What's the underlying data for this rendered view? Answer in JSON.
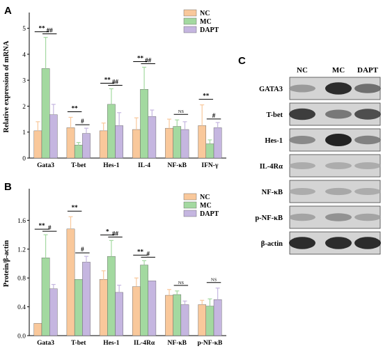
{
  "colors": {
    "NC": "#f9c89b",
    "MC": "#a3d9a0",
    "DAPT": "#c5b6e0"
  },
  "chart_data": [
    {
      "panel": "A",
      "type": "bar",
      "ylabel": "Relative expression of mRNA",
      "ylim": [
        0,
        5.5
      ],
      "yticks": [
        0,
        1,
        2,
        3,
        4,
        5
      ],
      "legend_position": "top-right",
      "categories": [
        "Gata3",
        "T-bet",
        "Hes-1",
        "IL-4",
        "NF-κB",
        "IFN-γ"
      ],
      "series": [
        {
          "name": "NC",
          "values": [
            1.05,
            1.17,
            1.05,
            1.1,
            1.15,
            1.25
          ],
          "errors": [
            0.35,
            0.4,
            0.3,
            0.45,
            0.35,
            0.8
          ]
        },
        {
          "name": "MC",
          "values": [
            3.45,
            0.5,
            2.07,
            2.65,
            1.22,
            0.55
          ],
          "errors": [
            1.2,
            0.1,
            0.6,
            0.85,
            0.25,
            0.15
          ]
        },
        {
          "name": "DAPT",
          "values": [
            1.67,
            0.95,
            1.25,
            1.6,
            1.1,
            1.17
          ],
          "errors": [
            0.4,
            0.2,
            0.5,
            0.25,
            0.3,
            0.2
          ]
        }
      ],
      "significance": [
        {
          "category": "Gata3",
          "nc_mc": "**",
          "mc_dapt": "##"
        },
        {
          "category": "T-bet",
          "nc_mc": "**",
          "mc_dapt": "#"
        },
        {
          "category": "Hes-1",
          "nc_mc": "**",
          "mc_dapt": "##"
        },
        {
          "category": "IL-4",
          "nc_mc": "**",
          "mc_dapt": "##"
        },
        {
          "category": "NF-κB",
          "nc_mc": "",
          "mc_dapt": "NS"
        },
        {
          "category": "IFN-γ",
          "nc_mc": "**",
          "mc_dapt": "#"
        }
      ]
    },
    {
      "panel": "B",
      "type": "bar",
      "ylabel": "Protein/β-actin",
      "ylim": [
        0,
        2.0
      ],
      "yticks": [
        0.0,
        0.4,
        0.8,
        1.2,
        1.6
      ],
      "legend_position": "top-right",
      "categories": [
        "Gata3",
        "T-bet",
        "Hes-1",
        "IL-4Rα",
        "NF-κB",
        "p-NF-κB"
      ],
      "series": [
        {
          "name": "NC",
          "values": [
            0.17,
            1.48,
            0.78,
            0.68,
            0.56,
            0.43
          ],
          "errors": [
            0.0,
            0.17,
            0.12,
            0.12,
            0.08,
            0.06
          ]
        },
        {
          "name": "MC",
          "values": [
            1.08,
            0.78,
            1.1,
            0.98,
            0.57,
            0.41
          ],
          "errors": [
            0.32,
            0.0,
            0.22,
            0.06,
            0.05,
            0.1
          ]
        },
        {
          "name": "DAPT",
          "values": [
            0.65,
            1.02,
            0.6,
            0.76,
            0.43,
            0.5
          ],
          "errors": [
            0.06,
            0.08,
            0.1,
            0.0,
            0.05,
            0.16
          ]
        }
      ],
      "significance": [
        {
          "category": "Gata3",
          "nc_mc": "**",
          "mc_dapt": "#"
        },
        {
          "category": "T-bet",
          "nc_mc": "**",
          "mc_dapt": "#"
        },
        {
          "category": "Hes-1",
          "nc_mc": "*",
          "mc_dapt": "##"
        },
        {
          "category": "IL-4Rα",
          "nc_mc": "**",
          "mc_dapt": "#"
        },
        {
          "category": "NF-κB",
          "nc_mc": "",
          "mc_dapt": "NS"
        },
        {
          "category": "p-NF-κB",
          "nc_mc": "",
          "mc_dapt": "NS"
        }
      ]
    }
  ],
  "western_blot": {
    "panel": "C",
    "columns": [
      "NC",
      "MC",
      "DAPT"
    ],
    "rows": [
      {
        "label": "GATA3",
        "intensity": [
          0.3,
          0.95,
          0.55
        ]
      },
      {
        "label": "T-bet",
        "intensity": [
          0.85,
          0.5,
          0.75
        ]
      },
      {
        "label": "Hes-1",
        "intensity": [
          0.4,
          1.0,
          0.45
        ]
      },
      {
        "label": "IL-4Rα",
        "intensity": [
          0.2,
          0.2,
          0.2
        ]
      },
      {
        "label": "NF-κB",
        "intensity": [
          0.2,
          0.22,
          0.2
        ]
      },
      {
        "label": "p-NF-κB",
        "intensity": [
          0.25,
          0.35,
          0.25
        ]
      },
      {
        "label": "β-actin",
        "intensity": [
          0.95,
          0.95,
          0.95
        ]
      }
    ]
  }
}
